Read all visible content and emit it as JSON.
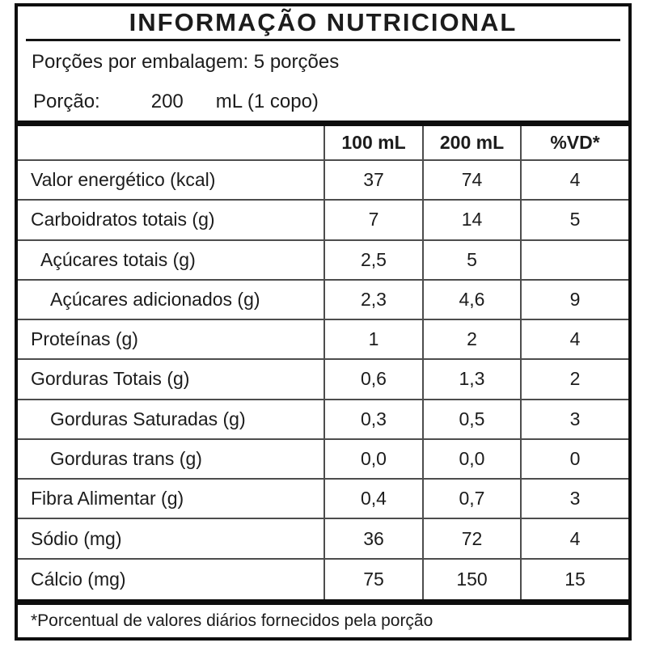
{
  "title": "INFORMAÇÃO NUTRICIONAL",
  "servings_line": "Porções por embalagem: 5 porções",
  "portion": {
    "label": "Porção:",
    "amount": "200",
    "unit": "mL (1 copo)"
  },
  "columns": [
    "100 mL",
    "200 mL",
    "%VD*"
  ],
  "rows": [
    {
      "label": "Valor energético (kcal)",
      "indent": 0,
      "per_100ml": "37",
      "per_200ml": "74",
      "vd_percent": "4"
    },
    {
      "label": "Carboidratos totais (g)",
      "indent": 0,
      "per_100ml": "7",
      "per_200ml": "14",
      "vd_percent": "5"
    },
    {
      "label": "Açúcares totais (g)",
      "indent": 1,
      "per_100ml": "2,5",
      "per_200ml": "5",
      "vd_percent": ""
    },
    {
      "label": "Açúcares adicionados (g)",
      "indent": 2,
      "per_100ml": "2,3",
      "per_200ml": "4,6",
      "vd_percent": "9"
    },
    {
      "label": "Proteínas (g)",
      "indent": 0,
      "per_100ml": "1",
      "per_200ml": "2",
      "vd_percent": "4"
    },
    {
      "label": "Gorduras Totais (g)",
      "indent": 0,
      "per_100ml": "0,6",
      "per_200ml": "1,3",
      "vd_percent": "2"
    },
    {
      "label": "Gorduras Saturadas (g)",
      "indent": 2,
      "per_100ml": "0,3",
      "per_200ml": "0,5",
      "vd_percent": "3"
    },
    {
      "label": "Gorduras trans (g)",
      "indent": 2,
      "per_100ml": "0,0",
      "per_200ml": "0,0",
      "vd_percent": "0"
    },
    {
      "label": "Fibra Alimentar (g)",
      "indent": 0,
      "per_100ml": "0,4",
      "per_200ml": "0,7",
      "vd_percent": "3"
    },
    {
      "label": "Sódio (mg)",
      "indent": 0,
      "per_100ml": "36",
      "per_200ml": "72",
      "vd_percent": "4"
    },
    {
      "label": "Cálcio (mg)",
      "indent": 0,
      "per_100ml": "75",
      "per_200ml": "150",
      "vd_percent": "15"
    }
  ],
  "footnote": "*Porcentual de valores diários fornecidos pela porção"
}
